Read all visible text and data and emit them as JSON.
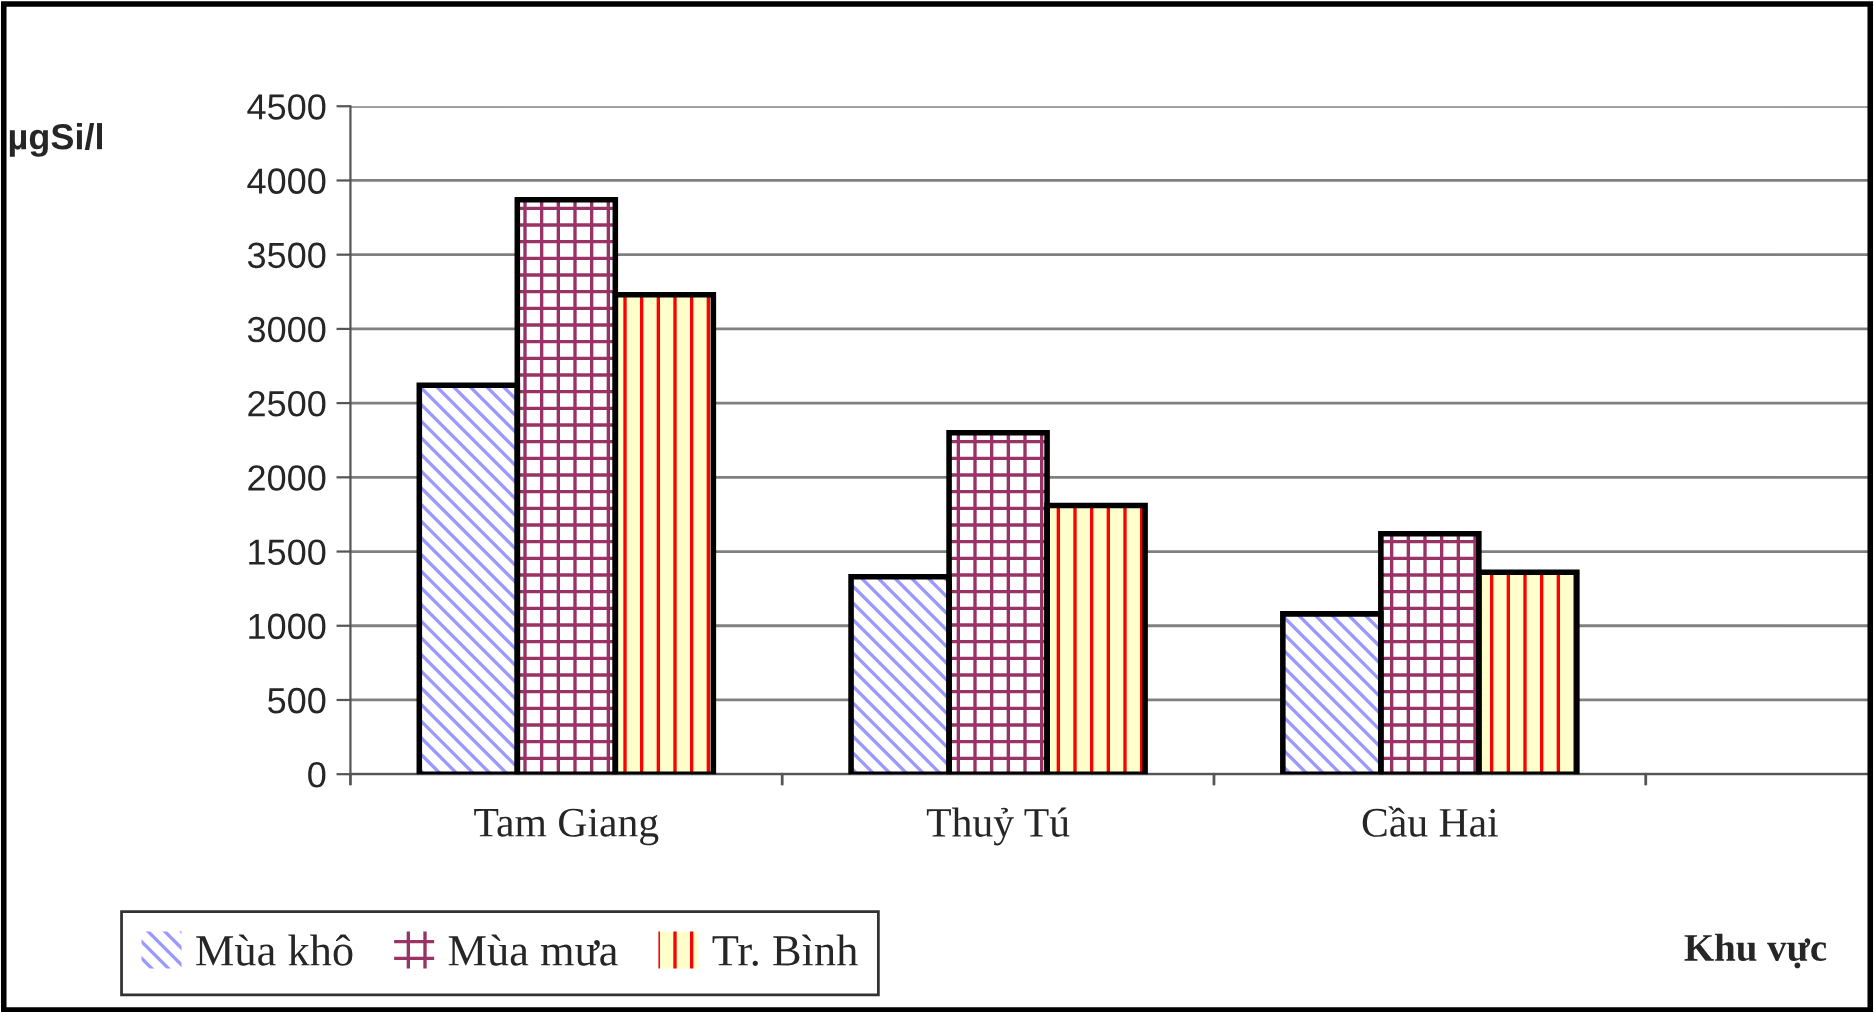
{
  "chart_data": {
    "type": "bar",
    "ylabel": "µgSi/l",
    "xlabel": "Khu vực",
    "categories": [
      "Tam Giang",
      "Thuỷ Tú",
      "Cầu Hai"
    ],
    "series": [
      {
        "name": "Mùa khô",
        "color": "#9999ff",
        "values": [
          2620,
          1330,
          1080
        ]
      },
      {
        "name": "Mùa mưa",
        "color": "#993366",
        "values": [
          3870,
          2300,
          1620
        ]
      },
      {
        "name": "Tr. Bình",
        "color": "#ff0000",
        "values": [
          3230,
          1810,
          1360
        ]
      }
    ],
    "ylim": [
      0,
      4500
    ],
    "yticks": [
      0,
      500,
      1000,
      1500,
      2000,
      2500,
      3000,
      3500,
      4000,
      4500
    ],
    "grid": "y",
    "legend": "bottom left"
  }
}
